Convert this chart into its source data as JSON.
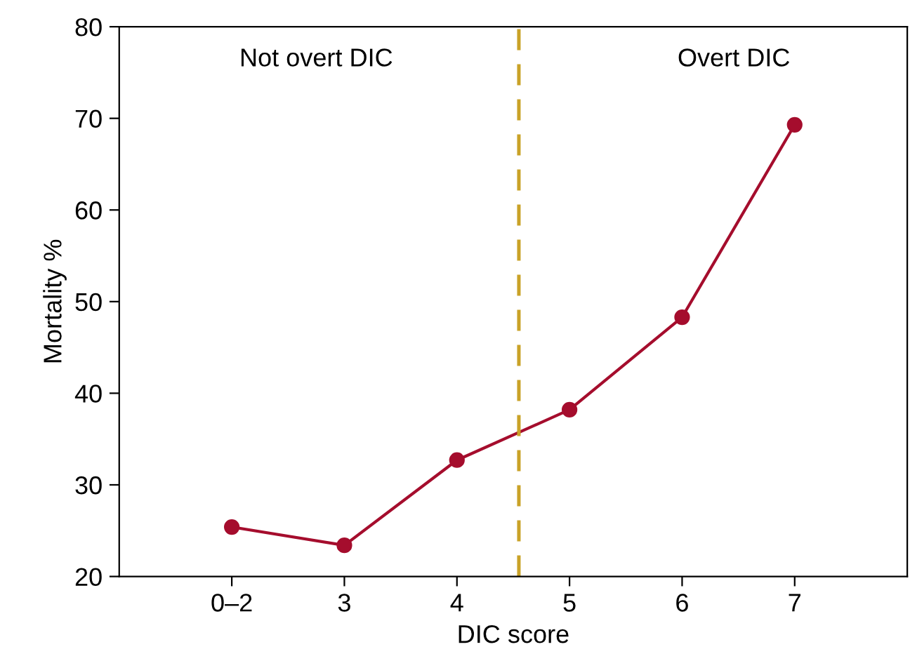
{
  "chart_data": {
    "type": "line",
    "xlabel": "DIC score",
    "ylabel": "Mortality %",
    "x": [
      2,
      3,
      4,
      5,
      6,
      7
    ],
    "series": [
      {
        "color": "#a50d2d",
        "values": [
          25.4,
          23.4,
          32.7,
          38.2,
          48.3,
          69.3
        ]
      }
    ],
    "xlim": [
      1,
      8
    ],
    "xticks": [
      {
        "value": 2,
        "label": "0–2"
      },
      3,
      4,
      5,
      6,
      7
    ],
    "ylim": [
      20,
      80
    ],
    "yticks": [
      20,
      30,
      40,
      50,
      60,
      70,
      80
    ],
    "marker": "circle",
    "line_style": "solid",
    "grid": false,
    "legend": false,
    "ref_lines": [
      {
        "axis": "x",
        "value": 4.55,
        "color": "#c9a227",
        "line_style": "dashed"
      }
    ],
    "annotations": [
      "Not overt DIC",
      "Overt DIC"
    ]
  }
}
